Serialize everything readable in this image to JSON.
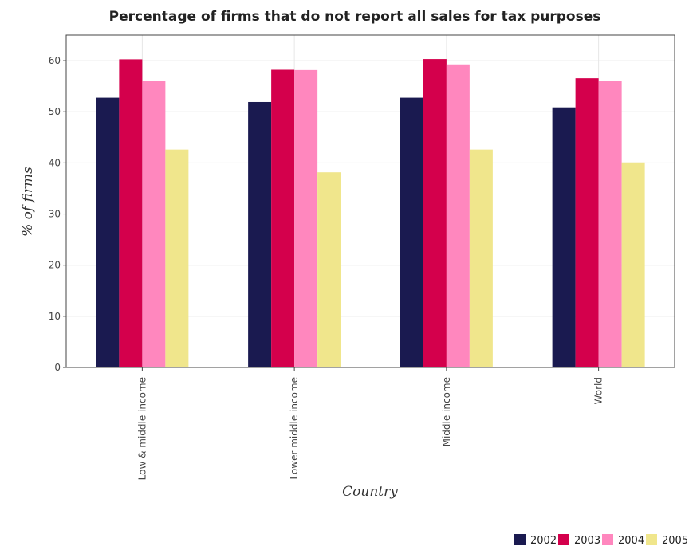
{
  "chart_data": {
    "type": "bar",
    "title": "Percentage of firms that do not report all sales for tax purposes",
    "xlabel": "Country",
    "ylabel": "% of firms",
    "categories": [
      "Low & middle income",
      "Lower middle income",
      "Middle income",
      "World"
    ],
    "series": [
      {
        "name": "2002",
        "color": "#1a1a50",
        "values": [
          52.75,
          51.91,
          52.75,
          50.86
        ]
      },
      {
        "name": "2003",
        "color": "#d4004c",
        "values": [
          60.26,
          58.22,
          60.31,
          56.56
        ]
      },
      {
        "name": "2004",
        "color": "#ff87be",
        "values": [
          56.01,
          58.16,
          59.27,
          56.01
        ]
      },
      {
        "name": "2005",
        "color": "#f0e68c",
        "values": [
          42.61,
          38.16,
          42.61,
          40.1
        ]
      }
    ],
    "ylim": [
      0,
      65
    ],
    "yticks": [
      0,
      10,
      20,
      30,
      40,
      50,
      60
    ],
    "grid": true,
    "legend_position": "bottom-right"
  }
}
